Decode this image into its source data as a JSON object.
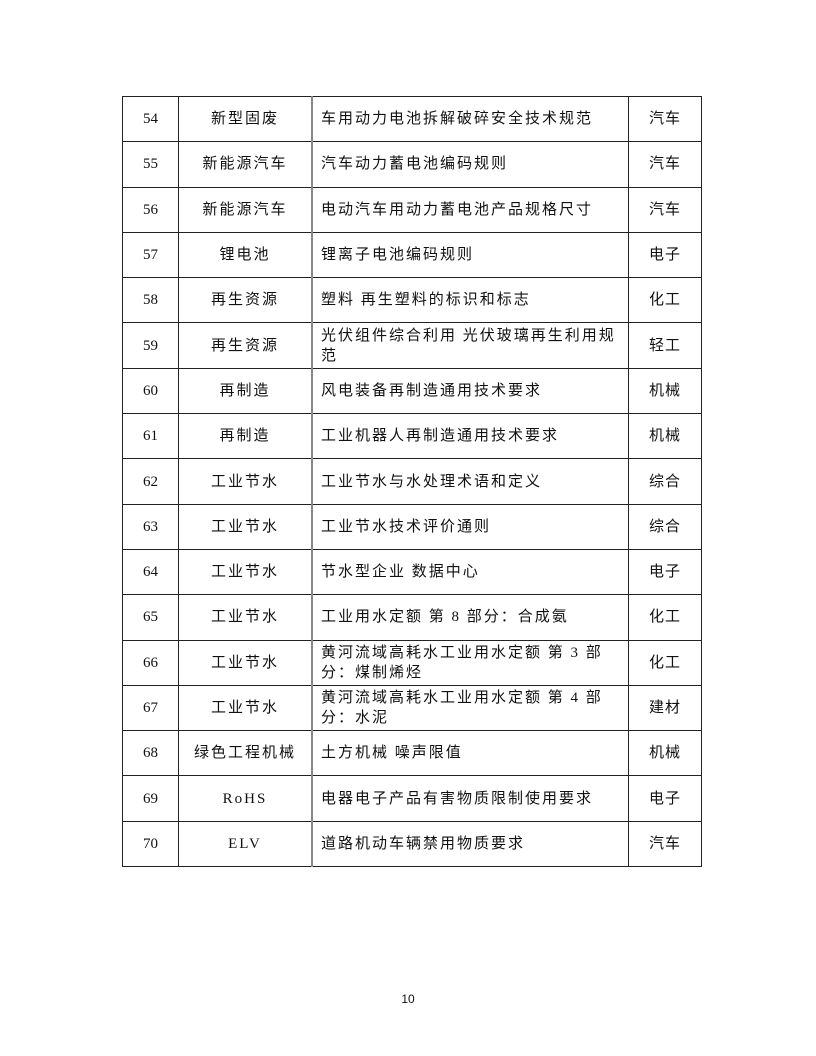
{
  "rows": [
    {
      "no": "54",
      "category": "新型固废",
      "title": "车用动力电池拆解破碎安全技术规范",
      "industry": "汽车"
    },
    {
      "no": "55",
      "category": "新能源汽车",
      "title": "汽车动力蓄电池编码规则",
      "industry": "汽车"
    },
    {
      "no": "56",
      "category": "新能源汽车",
      "title": "电动汽车用动力蓄电池产品规格尺寸",
      "industry": "汽车"
    },
    {
      "no": "57",
      "category": "锂电池",
      "title": "锂离子电池编码规则",
      "industry": "电子"
    },
    {
      "no": "58",
      "category": "再生资源",
      "title": "塑料 再生塑料的标识和标志",
      "industry": "化工"
    },
    {
      "no": "59",
      "category": "再生资源",
      "title": "光伏组件综合利用 光伏玻璃再生利用规范",
      "industry": "轻工"
    },
    {
      "no": "60",
      "category": "再制造",
      "title": "风电装备再制造通用技术要求",
      "industry": "机械"
    },
    {
      "no": "61",
      "category": "再制造",
      "title": "工业机器人再制造通用技术要求",
      "industry": "机械"
    },
    {
      "no": "62",
      "category": "工业节水",
      "title": "工业节水与水处理术语和定义",
      "industry": "综合"
    },
    {
      "no": "63",
      "category": "工业节水",
      "title": "工业节水技术评价通则",
      "industry": "综合"
    },
    {
      "no": "64",
      "category": "工业节水",
      "title": "节水型企业 数据中心",
      "industry": "电子"
    },
    {
      "no": "65",
      "category": "工业节水",
      "title": "工业用水定额 第 8 部分：合成氨",
      "industry": "化工"
    },
    {
      "no": "66",
      "category": "工业节水",
      "title": "黄河流域高耗水工业用水定额 第 3 部分：煤制烯烃",
      "industry": "化工"
    },
    {
      "no": "67",
      "category": "工业节水",
      "title": "黄河流域高耗水工业用水定额 第 4 部分：水泥",
      "industry": "建材"
    },
    {
      "no": "68",
      "category": "绿色工程机械",
      "title": "土方机械 噪声限值",
      "industry": "机械"
    },
    {
      "no": "69",
      "category": "RoHS",
      "title": "电器电子产品有害物质限制使用要求",
      "industry": "电子"
    },
    {
      "no": "70",
      "category": "ELV",
      "title": "道路机动车辆禁用物质要求",
      "industry": "汽车"
    }
  ],
  "page_number": "10"
}
